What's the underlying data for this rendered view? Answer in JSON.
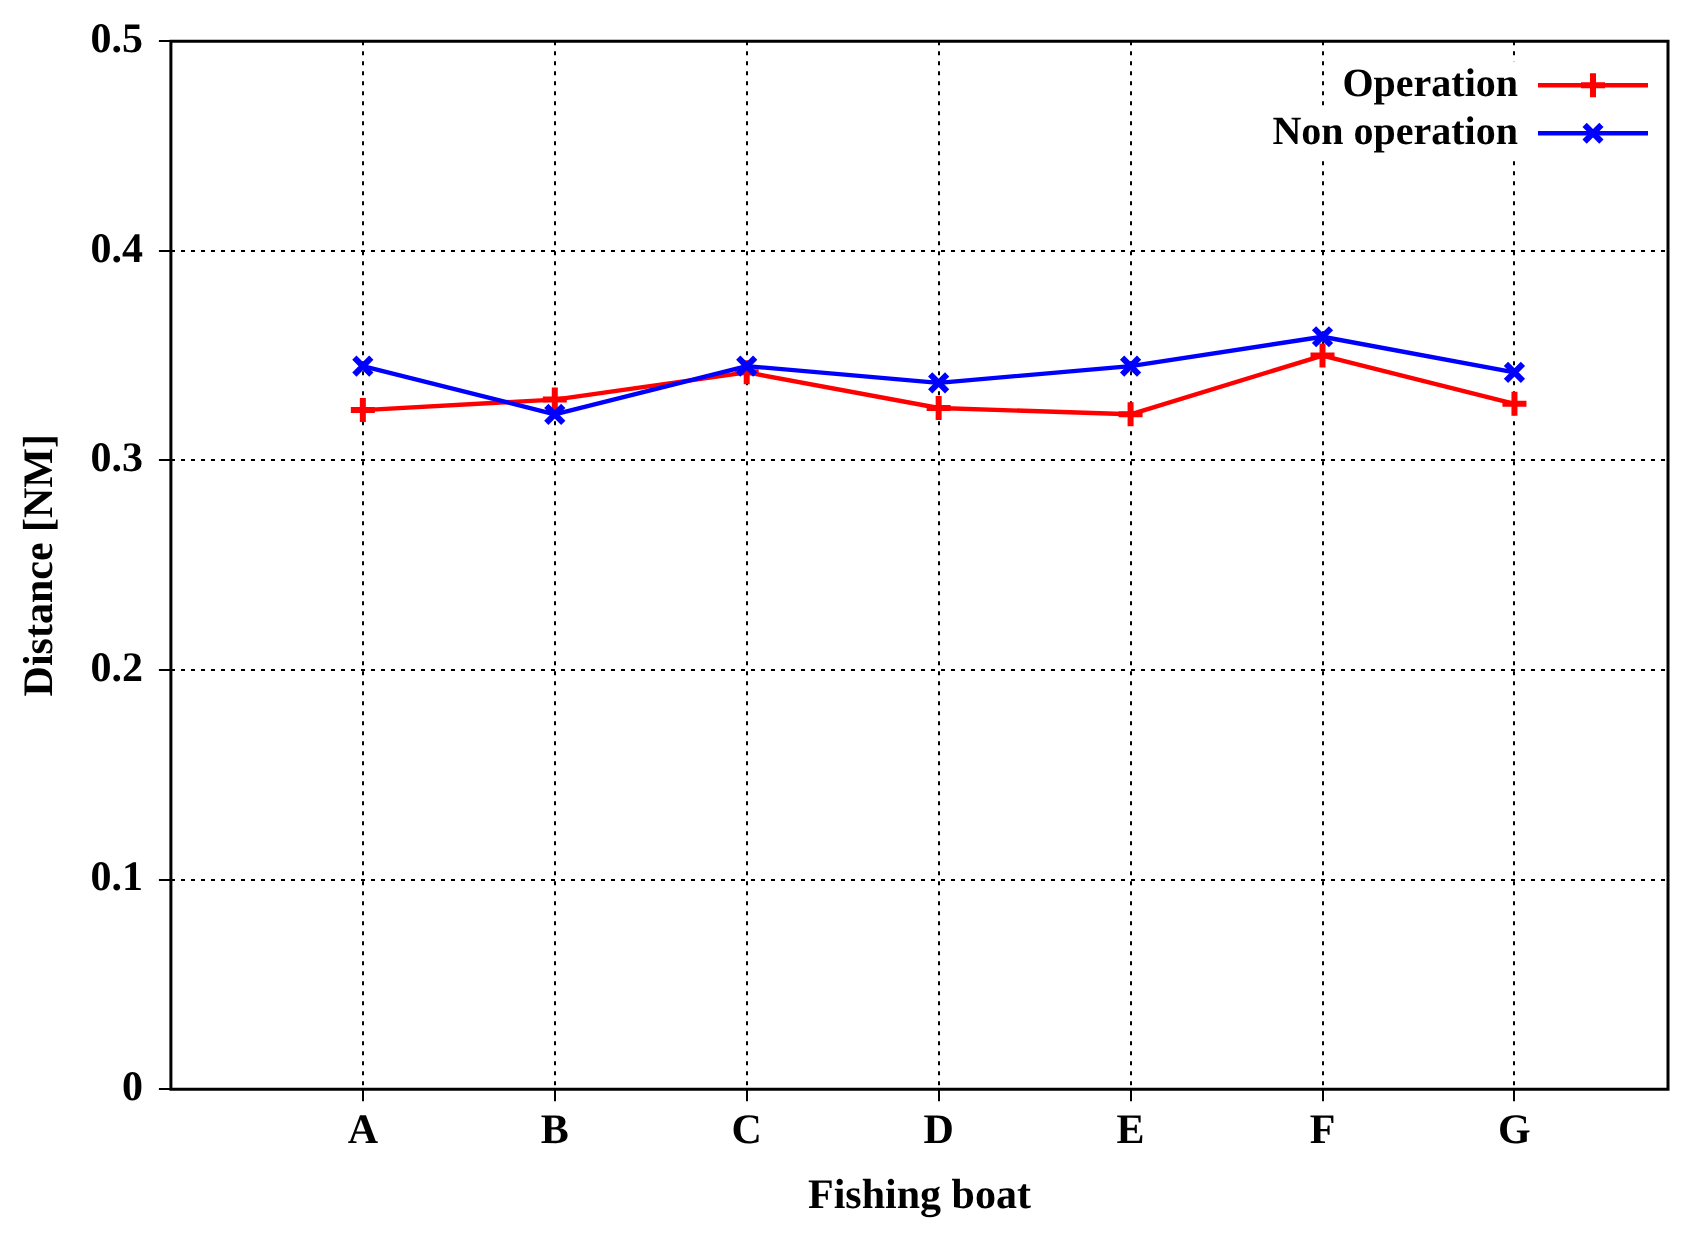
{
  "chart_data": {
    "type": "line",
    "xlabel": "Fishing boat",
    "ylabel": "Distance [NM]",
    "categories": [
      "A",
      "B",
      "C",
      "D",
      "E",
      "F",
      "G"
    ],
    "series": [
      {
        "name": "Operation",
        "color": "#ff0000",
        "marker": "cross",
        "values": [
          0.324,
          0.329,
          0.342,
          0.325,
          0.322,
          0.35,
          0.327
        ]
      },
      {
        "name": "Non operation",
        "color": "#0000ff",
        "marker": "crossRot",
        "values": [
          0.345,
          0.322,
          0.345,
          0.337,
          0.345,
          0.359,
          0.342
        ]
      }
    ],
    "ylim": [
      0,
      0.5
    ],
    "yticks": [
      0,
      0.1,
      0.2,
      0.3,
      0.4,
      0.5
    ],
    "grid": true,
    "legend": "top right",
    "line_style": "solid"
  }
}
